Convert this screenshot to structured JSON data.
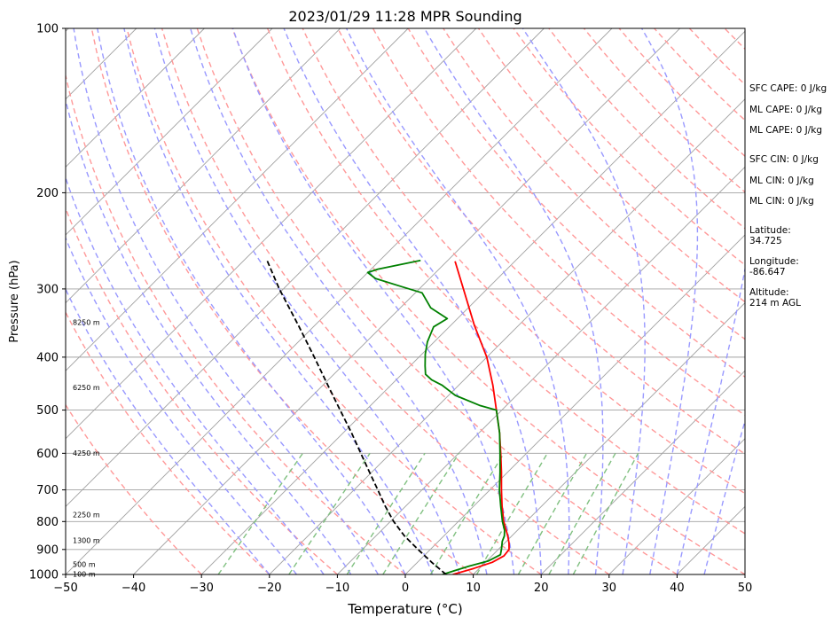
{
  "chart_data": {
    "type": "line",
    "title": "2023/01/29 11:28 MPR Sounding",
    "xlabel": "Temperature (°C)",
    "ylabel": "Pressure (hPa)",
    "xlim": [
      -50,
      50
    ],
    "ylim": [
      1000,
      100
    ],
    "y_scale": "log",
    "skew": "skew-T",
    "x_ticks": [
      "−50",
      "−40",
      "−30",
      "−20",
      "−10",
      "0",
      "10",
      "20",
      "30",
      "40",
      "50"
    ],
    "y_ticks": [
      "100",
      "200",
      "300",
      "400",
      "500",
      "600",
      "700",
      "800",
      "900",
      "1000"
    ],
    "height_labels": [
      {
        "p": 1000,
        "text": "100 m"
      },
      {
        "p": 960,
        "text": "500 m"
      },
      {
        "p": 868,
        "text": "1300 m"
      },
      {
        "p": 778,
        "text": "2250 m"
      },
      {
        "p": 600,
        "text": "4250 m"
      },
      {
        "p": 455,
        "text": "6250 m"
      },
      {
        "p": 346,
        "text": "8250 m"
      }
    ],
    "series": [
      {
        "role": "temperature",
        "color": "#ff0000",
        "values": [
          {
            "p": 1000,
            "t": 7.0
          },
          {
            "p": 975,
            "t": 9.2
          },
          {
            "p": 950,
            "t": 11.0
          },
          {
            "p": 925,
            "t": 11.8
          },
          {
            "p": 900,
            "t": 11.6
          },
          {
            "p": 875,
            "t": 10.6
          },
          {
            "p": 850,
            "t": 9.4
          },
          {
            "p": 800,
            "t": 6.7
          },
          {
            "p": 750,
            "t": 4.2
          },
          {
            "p": 700,
            "t": 1.7
          },
          {
            "p": 650,
            "t": -0.9
          },
          {
            "p": 600,
            "t": -3.8
          },
          {
            "p": 550,
            "t": -7.0
          },
          {
            "p": 500,
            "t": -10.8
          },
          {
            "p": 450,
            "t": -15.0
          },
          {
            "p": 400,
            "t": -20.0
          },
          {
            "p": 350,
            "t": -26.5
          },
          {
            "p": 300,
            "t": -33.5
          },
          {
            "p": 267,
            "t": -38.8
          }
        ]
      },
      {
        "role": "dewpoint",
        "color": "#008000",
        "values": [
          {
            "p": 1000,
            "t": 5.5
          },
          {
            "p": 985,
            "t": 6.6
          },
          {
            "p": 965,
            "t": 8.2
          },
          {
            "p": 945,
            "t": 10.2
          },
          {
            "p": 920,
            "t": 11.1
          },
          {
            "p": 895,
            "t": 10.3
          },
          {
            "p": 870,
            "t": 9.4
          },
          {
            "p": 850,
            "t": 8.9
          },
          {
            "p": 830,
            "t": 8.1
          },
          {
            "p": 800,
            "t": 6.5
          },
          {
            "p": 750,
            "t": 4.0
          },
          {
            "p": 700,
            "t": 1.4
          },
          {
            "p": 650,
            "t": -1.1
          },
          {
            "p": 600,
            "t": -3.9
          },
          {
            "p": 550,
            "t": -7.0
          },
          {
            "p": 500,
            "t": -10.8
          },
          {
            "p": 490,
            "t": -14.0
          },
          {
            "p": 470,
            "t": -19.0
          },
          {
            "p": 450,
            "t": -22.5
          },
          {
            "p": 440,
            "t": -24.8
          },
          {
            "p": 430,
            "t": -26.5
          },
          {
            "p": 415,
            "t": -27.8
          },
          {
            "p": 395,
            "t": -29.5
          },
          {
            "p": 375,
            "t": -31.0
          },
          {
            "p": 352,
            "t": -32.3
          },
          {
            "p": 340,
            "t": -31.5
          },
          {
            "p": 325,
            "t": -35.5
          },
          {
            "p": 305,
            "t": -39.0
          },
          {
            "p": 297,
            "t": -43.0
          },
          {
            "p": 287,
            "t": -48.0
          },
          {
            "p": 280,
            "t": -50.0
          },
          {
            "p": 276,
            "t": -49.0
          },
          {
            "p": 266,
            "t": -44.0
          }
        ]
      },
      {
        "role": "parcel",
        "color": "#000000",
        "values": [
          {
            "p": 1000,
            "t": 6.0
          },
          {
            "p": 950,
            "t": 2.1
          },
          {
            "p": 900,
            "t": -1.8
          },
          {
            "p": 850,
            "t": -5.8
          },
          {
            "p": 800,
            "t": -9.5
          },
          {
            "p": 750,
            "t": -13.0
          },
          {
            "p": 700,
            "t": -16.5
          },
          {
            "p": 650,
            "t": -20.3
          },
          {
            "p": 600,
            "t": -24.4
          },
          {
            "p": 550,
            "t": -28.8
          },
          {
            "p": 500,
            "t": -33.8
          },
          {
            "p": 450,
            "t": -39.3
          },
          {
            "p": 400,
            "t": -45.4
          },
          {
            "p": 350,
            "t": -52.4
          },
          {
            "p": 300,
            "t": -60.6
          },
          {
            "p": 266,
            "t": -66.6
          }
        ]
      }
    ]
  },
  "side_panel": {
    "sfc_cape": "SFC CAPE: 0 J/kg",
    "ml_cape_1": "ML CAPE: 0 J/kg",
    "ml_cape_2": "ML CAPE: 0 J/kg",
    "sfc_cin": "SFC CIN: 0 J/kg",
    "ml_cin_1": "ML CIN: 0 J/kg",
    "ml_cin_2": "ML CIN: 0 J/kg",
    "latitude": "Latitude:\n34.725",
    "longitude": "Longitude:\n-86.647",
    "altitude": "Altitude:\n214 m AGL"
  },
  "colors": {
    "temperature": "#ff0000",
    "dewpoint": "#008000",
    "parcel": "#000000",
    "dry_adiabat": "#ff9999",
    "moist_adiabat": "#9999ff",
    "mixing_ratio": "#80c080",
    "isotherm": "#a0a0a0"
  }
}
